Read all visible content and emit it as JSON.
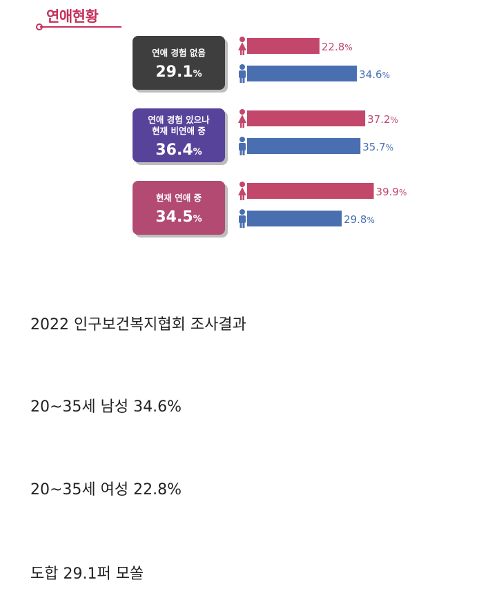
{
  "chart_data": {
    "type": "bar",
    "title": "연애현황",
    "categories": [
      {
        "label_lines": [
          "연애 경험 없음"
        ],
        "total": "29.1",
        "total_unit": "%"
      },
      {
        "label_lines": [
          "연애 경험 있으나",
          "현재 비연애 중"
        ],
        "total": "36.4",
        "total_unit": "%"
      },
      {
        "label_lines": [
          "현재 연애 중"
        ],
        "total": "34.5",
        "total_unit": "%"
      }
    ],
    "series": [
      {
        "gender": "female",
        "values": [
          22.8,
          37.2,
          39.9
        ],
        "color": "#c2476b"
      },
      {
        "gender": "male",
        "values": [
          34.6,
          35.7,
          29.8
        ],
        "color": "#4a6fb0"
      }
    ],
    "value_unit": "%",
    "box_colors": [
      "#3e3e3e",
      "#58439a",
      "#b24a72"
    ]
  },
  "captions": [
    "2022 인구보건복지협회 조사결과",
    "20~35세 남성 34.6%",
    "20~35세 여성 22.8%",
    "도합 29.1퍼 모쏠"
  ]
}
